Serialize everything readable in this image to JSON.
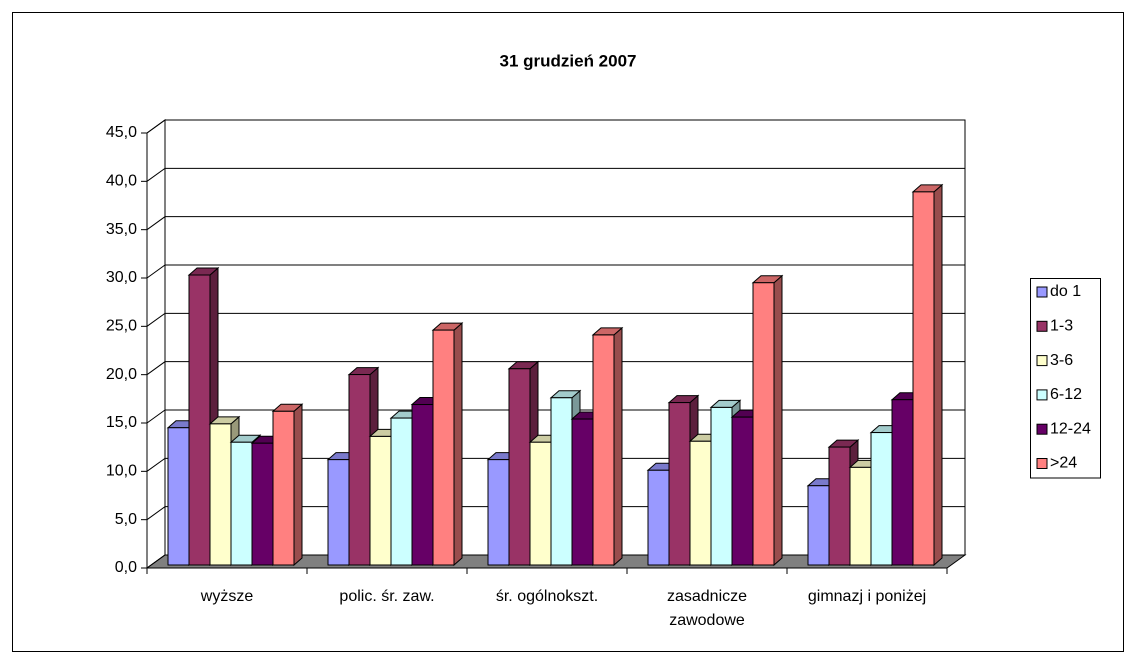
{
  "chart_data": {
    "type": "bar3d",
    "title": "31 grudzień 2007",
    "categories": [
      "wyższe",
      "polic. śr. zaw.",
      "śr. ogólnokszt.",
      "zasadnicze zawodowe",
      "gimnazj i poniżej"
    ],
    "series": [
      {
        "name": "do 1",
        "color": "#9999ff",
        "values": [
          14.2,
          10.9,
          10.9,
          9.8,
          8.2
        ]
      },
      {
        "name": "1-3",
        "color": "#993366",
        "values": [
          30.0,
          19.7,
          20.3,
          16.8,
          12.2
        ]
      },
      {
        "name": "3-6",
        "color": "#ffffcc",
        "values": [
          14.6,
          13.3,
          12.7,
          12.8,
          10.1
        ]
      },
      {
        "name": "6-12",
        "color": "#ccffff",
        "values": [
          12.7,
          15.2,
          17.3,
          16.3,
          13.7
        ]
      },
      {
        "name": "12-24",
        "color": "#660066",
        "values": [
          12.6,
          16.6,
          15.1,
          15.3,
          17.1
        ]
      },
      {
        "name": ">24",
        "color": "#ff8080",
        "values": [
          15.9,
          24.3,
          23.8,
          29.2,
          38.6
        ]
      }
    ],
    "ylim": [
      0,
      45
    ],
    "yticks": [
      {
        "value": 0,
        "label": "0,0"
      },
      {
        "value": 5,
        "label": "5,0"
      },
      {
        "value": 10,
        "label": "10,0"
      },
      {
        "value": 15,
        "label": "15,0"
      },
      {
        "value": 20,
        "label": "20,0"
      },
      {
        "value": 25,
        "label": "25,0"
      },
      {
        "value": 30,
        "label": "30,0"
      },
      {
        "value": 35,
        "label": "35,0"
      },
      {
        "value": 40,
        "label": "40,0"
      },
      {
        "value": 45,
        "label": "45,0"
      }
    ],
    "grid": true,
    "legend": "right"
  }
}
